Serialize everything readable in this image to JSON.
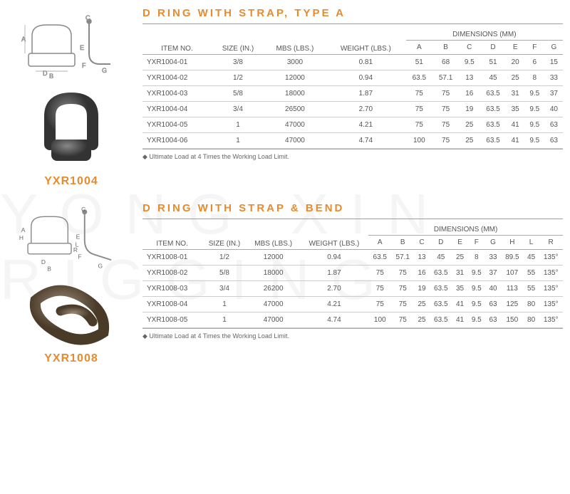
{
  "watermark": "YONG XIN RIGGING",
  "section1": {
    "title": "D RING WITH STRAP, TYPE A",
    "product_label": "YXR1004",
    "footnote": "Ultimate Load at 4 Times the Working Load Limit.",
    "headers": {
      "item": "ITEM NO.",
      "size": "SIZE (IN.)",
      "mbs": "MBS (LBS.)",
      "weight": "WEIGHT (LBS.)",
      "dims": "DIMENSIONS (MM)",
      "cols": [
        "A",
        "B",
        "C",
        "D",
        "E",
        "F",
        "G"
      ]
    },
    "rows": [
      {
        "item": "YXR1004-01",
        "size": "3/8",
        "mbs": "3000",
        "weight": "0.81",
        "d": [
          "51",
          "68",
          "9.5",
          "51",
          "20",
          "6",
          "15"
        ]
      },
      {
        "item": "YXR1004-02",
        "size": "1/2",
        "mbs": "12000",
        "weight": "0.94",
        "d": [
          "63.5",
          "57.1",
          "13",
          "45",
          "25",
          "8",
          "33"
        ]
      },
      {
        "item": "YXR1004-03",
        "size": "5/8",
        "mbs": "18000",
        "weight": "1.87",
        "d": [
          "75",
          "75",
          "16",
          "63.5",
          "31",
          "9.5",
          "37"
        ]
      },
      {
        "item": "YXR1004-04",
        "size": "3/4",
        "mbs": "26500",
        "weight": "2.70",
        "d": [
          "75",
          "75",
          "19",
          "63.5",
          "35",
          "9.5",
          "40"
        ]
      },
      {
        "item": "YXR1004-05",
        "size": "1",
        "mbs": "47000",
        "weight": "4.21",
        "d": [
          "75",
          "75",
          "25",
          "63.5",
          "41",
          "9.5",
          "63"
        ]
      },
      {
        "item": "YXR1004-06",
        "size": "1",
        "mbs": "47000",
        "weight": "4.74",
        "d": [
          "100",
          "75",
          "25",
          "63.5",
          "41",
          "9.5",
          "63"
        ]
      }
    ]
  },
  "section2": {
    "title": "D RING WITH STRAP & BEND",
    "product_label": "YXR1008",
    "footnote": "Ultimate Load at 4 Times the Working Load Limit.",
    "headers": {
      "item": "ITEM NO.",
      "size": "SIZE (IN.)",
      "mbs": "MBS (LBS.)",
      "weight": "WEIGHT (LBS.)",
      "dims": "DIMENSIONS (MM)",
      "cols": [
        "A",
        "B",
        "C",
        "D",
        "E",
        "F",
        "G",
        "H",
        "L",
        "R"
      ]
    },
    "rows": [
      {
        "item": "YXR1008-01",
        "size": "1/2",
        "mbs": "12000",
        "weight": "0.94",
        "d": [
          "63.5",
          "57.1",
          "13",
          "45",
          "25",
          "8",
          "33",
          "89.5",
          "45",
          "135°"
        ]
      },
      {
        "item": "YXR1008-02",
        "size": "5/8",
        "mbs": "18000",
        "weight": "1.87",
        "d": [
          "75",
          "75",
          "16",
          "63.5",
          "31",
          "9.5",
          "37",
          "107",
          "55",
          "135°"
        ]
      },
      {
        "item": "YXR1008-03",
        "size": "3/4",
        "mbs": "26200",
        "weight": "2.70",
        "d": [
          "75",
          "75",
          "19",
          "63.5",
          "35",
          "9.5",
          "40",
          "113",
          "55",
          "135°"
        ]
      },
      {
        "item": "YXR1008-04",
        "size": "1",
        "mbs": "47000",
        "weight": "4.21",
        "d": [
          "75",
          "75",
          "25",
          "63.5",
          "41",
          "9.5",
          "63",
          "125",
          "80",
          "135°"
        ]
      },
      {
        "item": "YXR1008-05",
        "size": "1",
        "mbs": "47000",
        "weight": "4.74",
        "d": [
          "100",
          "75",
          "25",
          "63.5",
          "41",
          "9.5",
          "63",
          "150",
          "80",
          "135°"
        ]
      }
    ]
  },
  "colors": {
    "accent": "#e78b2f",
    "text": "#555",
    "border": "#aaa"
  }
}
